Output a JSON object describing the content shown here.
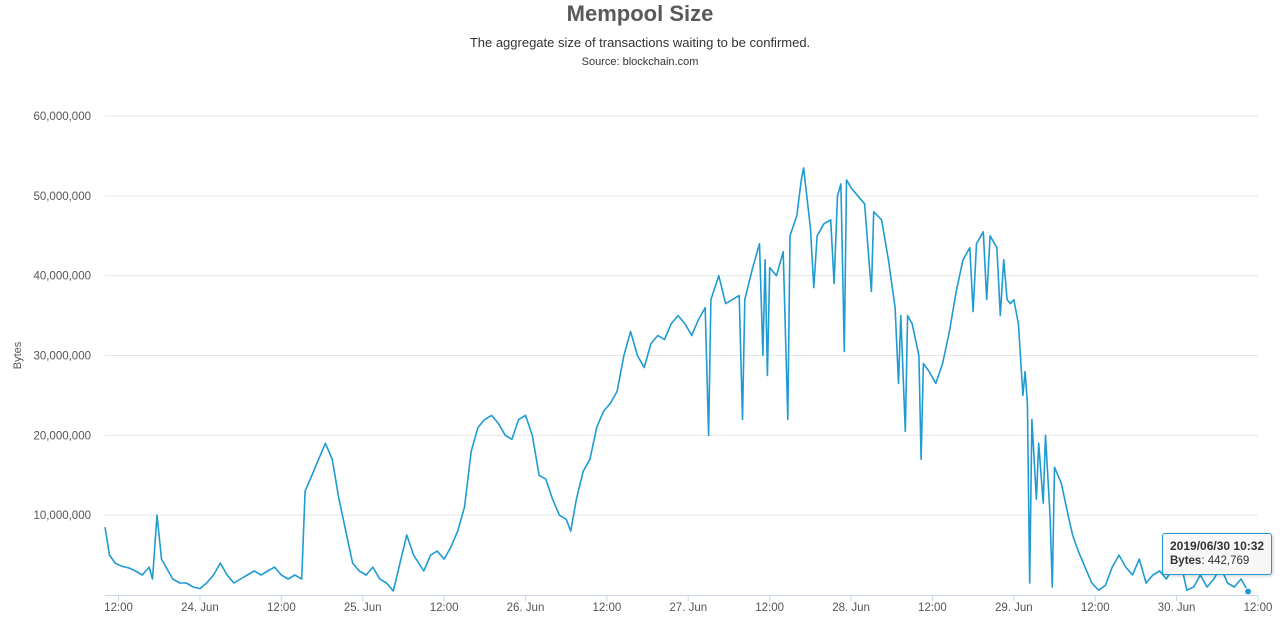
{
  "chart_data": {
    "type": "line",
    "title": "Mempool Size",
    "subtitle": "The aggregate size of transactions waiting to be confirmed.",
    "source": "Source: blockchain.com",
    "ylabel": "Bytes",
    "ylim": [
      0,
      60000000
    ],
    "yticks": [
      {
        "value": 10000000,
        "label": "10,000,000"
      },
      {
        "value": 20000000,
        "label": "20,000,000"
      },
      {
        "value": 30000000,
        "label": "30,000,000"
      },
      {
        "value": 40000000,
        "label": "40,000,000"
      },
      {
        "value": 50000000,
        "label": "50,000,000"
      },
      {
        "value": 60000000,
        "label": "60,000,000"
      }
    ],
    "xlim": [
      "2019-06-23 10:00",
      "2019-06-30 12:00"
    ],
    "xticks": [
      {
        "time": "2019-06-23 12:00",
        "label": "12:00"
      },
      {
        "time": "2019-06-24 00:00",
        "label": "24. Jun"
      },
      {
        "time": "2019-06-24 12:00",
        "label": "12:00"
      },
      {
        "time": "2019-06-25 00:00",
        "label": "25. Jun"
      },
      {
        "time": "2019-06-25 12:00",
        "label": "12:00"
      },
      {
        "time": "2019-06-26 00:00",
        "label": "26. Jun"
      },
      {
        "time": "2019-06-26 12:00",
        "label": "12:00"
      },
      {
        "time": "2019-06-27 00:00",
        "label": "27. Jun"
      },
      {
        "time": "2019-06-27 12:00",
        "label": "12:00"
      },
      {
        "time": "2019-06-28 00:00",
        "label": "28. Jun"
      },
      {
        "time": "2019-06-28 12:00",
        "label": "12:00"
      },
      {
        "time": "2019-06-29 00:00",
        "label": "29. Jun"
      },
      {
        "time": "2019-06-29 12:00",
        "label": "12:00"
      },
      {
        "time": "2019-06-30 00:00",
        "label": "30. Jun"
      },
      {
        "time": "2019-06-30 12:00",
        "label": "12:00"
      }
    ],
    "grid": true,
    "legend": "none",
    "series": [
      {
        "color": "#1f9bd1",
        "points": [
          [
            "2019-06-23 10:00",
            8500000
          ],
          [
            "2019-06-23 10:40",
            5000000
          ],
          [
            "2019-06-23 11:30",
            4000000
          ],
          [
            "2019-06-23 12:30",
            3600000
          ],
          [
            "2019-06-23 13:30",
            3400000
          ],
          [
            "2019-06-23 14:30",
            3000000
          ],
          [
            "2019-06-23 15:30",
            2500000
          ],
          [
            "2019-06-23 16:30",
            3500000
          ],
          [
            "2019-06-23 17:00",
            2000000
          ],
          [
            "2019-06-23 17:40",
            10000000
          ],
          [
            "2019-06-23 18:20",
            4500000
          ],
          [
            "2019-06-23 19:00",
            3500000
          ],
          [
            "2019-06-23 20:00",
            2000000
          ],
          [
            "2019-06-23 21:00",
            1500000
          ],
          [
            "2019-06-23 22:00",
            1500000
          ],
          [
            "2019-06-23 23:00",
            1000000
          ],
          [
            "2019-06-24 00:00",
            800000
          ],
          [
            "2019-06-24 01:00",
            1500000
          ],
          [
            "2019-06-24 02:00",
            2500000
          ],
          [
            "2019-06-24 03:00",
            4000000
          ],
          [
            "2019-06-24 04:00",
            2500000
          ],
          [
            "2019-06-24 05:00",
            1500000
          ],
          [
            "2019-06-24 06:00",
            2000000
          ],
          [
            "2019-06-24 07:00",
            2500000
          ],
          [
            "2019-06-24 08:00",
            3000000
          ],
          [
            "2019-06-24 09:00",
            2500000
          ],
          [
            "2019-06-24 10:00",
            3000000
          ],
          [
            "2019-06-24 11:00",
            3500000
          ],
          [
            "2019-06-24 12:00",
            2500000
          ],
          [
            "2019-06-24 13:00",
            2000000
          ],
          [
            "2019-06-24 14:00",
            2500000
          ],
          [
            "2019-06-24 15:00",
            2000000
          ],
          [
            "2019-06-24 15:30",
            13000000
          ],
          [
            "2019-06-24 16:30",
            15000000
          ],
          [
            "2019-06-24 17:30",
            17000000
          ],
          [
            "2019-06-24 18:30",
            19000000
          ],
          [
            "2019-06-24 19:30",
            17000000
          ],
          [
            "2019-06-24 20:30",
            12000000
          ],
          [
            "2019-06-24 21:30",
            8000000
          ],
          [
            "2019-06-24 22:30",
            4000000
          ],
          [
            "2019-06-24 23:30",
            3000000
          ],
          [
            "2019-06-25 00:30",
            2500000
          ],
          [
            "2019-06-25 01:30",
            3500000
          ],
          [
            "2019-06-25 02:30",
            2000000
          ],
          [
            "2019-06-25 03:30",
            1500000
          ],
          [
            "2019-06-25 04:30",
            500000
          ],
          [
            "2019-06-25 05:30",
            4000000
          ],
          [
            "2019-06-25 06:30",
            7500000
          ],
          [
            "2019-06-25 07:30",
            5000000
          ],
          [
            "2019-06-25 09:00",
            3000000
          ],
          [
            "2019-06-25 10:00",
            5000000
          ],
          [
            "2019-06-25 11:00",
            5500000
          ],
          [
            "2019-06-25 12:00",
            4500000
          ],
          [
            "2019-06-25 13:00",
            6000000
          ],
          [
            "2019-06-25 14:00",
            8000000
          ],
          [
            "2019-06-25 15:00",
            11000000
          ],
          [
            "2019-06-25 16:00",
            18000000
          ],
          [
            "2019-06-25 17:00",
            21000000
          ],
          [
            "2019-06-25 18:00",
            22000000
          ],
          [
            "2019-06-25 19:00",
            22500000
          ],
          [
            "2019-06-25 20:00",
            21500000
          ],
          [
            "2019-06-25 21:00",
            20000000
          ],
          [
            "2019-06-25 22:00",
            19500000
          ],
          [
            "2019-06-25 23:00",
            22000000
          ],
          [
            "2019-06-26 00:00",
            22500000
          ],
          [
            "2019-06-26 01:00",
            20000000
          ],
          [
            "2019-06-26 02:00",
            15000000
          ],
          [
            "2019-06-26 03:00",
            14500000
          ],
          [
            "2019-06-26 04:00",
            12000000
          ],
          [
            "2019-06-26 05:00",
            10000000
          ],
          [
            "2019-06-26 06:00",
            9500000
          ],
          [
            "2019-06-26 06:40",
            8000000
          ],
          [
            "2019-06-26 07:30",
            12000000
          ],
          [
            "2019-06-26 08:30",
            15500000
          ],
          [
            "2019-06-26 09:30",
            17000000
          ],
          [
            "2019-06-26 10:30",
            21000000
          ],
          [
            "2019-06-26 11:30",
            23000000
          ],
          [
            "2019-06-26 12:30",
            24000000
          ],
          [
            "2019-06-26 13:30",
            25500000
          ],
          [
            "2019-06-26 14:30",
            30000000
          ],
          [
            "2019-06-26 15:30",
            33000000
          ],
          [
            "2019-06-26 16:30",
            30000000
          ],
          [
            "2019-06-26 17:30",
            28500000
          ],
          [
            "2019-06-26 18:30",
            31500000
          ],
          [
            "2019-06-26 19:30",
            32500000
          ],
          [
            "2019-06-26 20:30",
            32000000
          ],
          [
            "2019-06-26 21:30",
            34000000
          ],
          [
            "2019-06-26 22:30",
            35000000
          ],
          [
            "2019-06-26 23:30",
            34000000
          ],
          [
            "2019-06-27 00:30",
            32500000
          ],
          [
            "2019-06-27 01:30",
            34500000
          ],
          [
            "2019-06-27 02:30",
            36000000
          ],
          [
            "2019-06-27 03:00",
            20000000
          ],
          [
            "2019-06-27 03:20",
            37000000
          ],
          [
            "2019-06-27 04:30",
            40000000
          ],
          [
            "2019-06-27 05:30",
            36500000
          ],
          [
            "2019-06-27 06:30",
            37000000
          ],
          [
            "2019-06-27 07:30",
            37500000
          ],
          [
            "2019-06-27 08:00",
            22000000
          ],
          [
            "2019-06-27 08:20",
            37000000
          ],
          [
            "2019-06-27 09:30",
            41000000
          ],
          [
            "2019-06-27 10:30",
            44000000
          ],
          [
            "2019-06-27 11:00",
            30000000
          ],
          [
            "2019-06-27 11:20",
            42000000
          ],
          [
            "2019-06-27 11:40",
            27500000
          ],
          [
            "2019-06-27 12:00",
            41000000
          ],
          [
            "2019-06-27 13:00",
            40000000
          ],
          [
            "2019-06-27 14:00",
            43000000
          ],
          [
            "2019-06-27 14:40",
            22000000
          ],
          [
            "2019-06-27 15:00",
            45000000
          ],
          [
            "2019-06-27 16:00",
            47500000
          ],
          [
            "2019-06-27 16:40",
            52000000
          ],
          [
            "2019-06-27 17:00",
            53500000
          ],
          [
            "2019-06-27 18:00",
            46000000
          ],
          [
            "2019-06-27 18:30",
            38500000
          ],
          [
            "2019-06-27 19:00",
            45000000
          ],
          [
            "2019-06-27 20:00",
            46500000
          ],
          [
            "2019-06-27 21:00",
            47000000
          ],
          [
            "2019-06-27 21:30",
            39000000
          ],
          [
            "2019-06-27 22:00",
            50000000
          ],
          [
            "2019-06-27 22:30",
            51500000
          ],
          [
            "2019-06-27 23:00",
            30500000
          ],
          [
            "2019-06-27 23:20",
            52000000
          ],
          [
            "2019-06-28 00:00",
            51000000
          ],
          [
            "2019-06-28 01:00",
            50000000
          ],
          [
            "2019-06-28 02:00",
            49000000
          ],
          [
            "2019-06-28 03:00",
            38000000
          ],
          [
            "2019-06-28 03:20",
            48000000
          ],
          [
            "2019-06-28 04:30",
            47000000
          ],
          [
            "2019-06-28 05:30",
            42000000
          ],
          [
            "2019-06-28 06:30",
            36000000
          ],
          [
            "2019-06-28 07:00",
            26500000
          ],
          [
            "2019-06-28 07:20",
            35000000
          ],
          [
            "2019-06-28 08:00",
            20500000
          ],
          [
            "2019-06-28 08:20",
            35000000
          ],
          [
            "2019-06-28 09:00",
            34000000
          ],
          [
            "2019-06-28 10:00",
            30000000
          ],
          [
            "2019-06-28 10:20",
            17000000
          ],
          [
            "2019-06-28 10:40",
            29000000
          ],
          [
            "2019-06-28 11:30",
            28000000
          ],
          [
            "2019-06-28 12:30",
            26500000
          ],
          [
            "2019-06-28 13:30",
            29000000
          ],
          [
            "2019-06-28 14:30",
            33000000
          ],
          [
            "2019-06-28 15:30",
            38000000
          ],
          [
            "2019-06-28 16:30",
            42000000
          ],
          [
            "2019-06-28 17:30",
            43500000
          ],
          [
            "2019-06-28 18:00",
            35500000
          ],
          [
            "2019-06-28 18:30",
            44000000
          ],
          [
            "2019-06-28 19:30",
            45500000
          ],
          [
            "2019-06-28 20:00",
            37000000
          ],
          [
            "2019-06-28 20:30",
            45000000
          ],
          [
            "2019-06-28 21:30",
            43500000
          ],
          [
            "2019-06-28 22:00",
            35000000
          ],
          [
            "2019-06-28 22:30",
            42000000
          ],
          [
            "2019-06-28 23:00",
            37000000
          ],
          [
            "2019-06-28 23:30",
            36500000
          ],
          [
            "2019-06-29 00:00",
            37000000
          ],
          [
            "2019-06-29 00:40",
            34000000
          ],
          [
            "2019-06-29 01:20",
            25000000
          ],
          [
            "2019-06-29 01:40",
            28000000
          ],
          [
            "2019-06-29 02:00",
            24000000
          ],
          [
            "2019-06-29 02:20",
            1500000
          ],
          [
            "2019-06-29 02:40",
            22000000
          ],
          [
            "2019-06-29 03:20",
            12000000
          ],
          [
            "2019-06-29 03:40",
            19000000
          ],
          [
            "2019-06-29 04:20",
            11500000
          ],
          [
            "2019-06-29 04:40",
            20000000
          ],
          [
            "2019-06-29 05:20",
            10000000
          ],
          [
            "2019-06-29 05:40",
            1000000
          ],
          [
            "2019-06-29 06:00",
            16000000
          ],
          [
            "2019-06-29 07:00",
            14000000
          ],
          [
            "2019-06-29 08:00",
            10000000
          ],
          [
            "2019-06-29 08:40",
            7500000
          ],
          [
            "2019-06-29 09:30",
            5500000
          ],
          [
            "2019-06-29 10:30",
            3500000
          ],
          [
            "2019-06-29 11:30",
            1500000
          ],
          [
            "2019-06-29 12:30",
            600000
          ],
          [
            "2019-06-29 13:30",
            1200000
          ],
          [
            "2019-06-29 14:30",
            3500000
          ],
          [
            "2019-06-29 15:30",
            5000000
          ],
          [
            "2019-06-29 16:30",
            3500000
          ],
          [
            "2019-06-29 17:30",
            2500000
          ],
          [
            "2019-06-29 18:30",
            4500000
          ],
          [
            "2019-06-29 19:30",
            1500000
          ],
          [
            "2019-06-29 20:30",
            2500000
          ],
          [
            "2019-06-29 21:30",
            3000000
          ],
          [
            "2019-06-29 22:30",
            2000000
          ],
          [
            "2019-06-29 23:30",
            3500000
          ],
          [
            "2019-06-30 00:30",
            4500000
          ],
          [
            "2019-06-30 01:30",
            600000
          ],
          [
            "2019-06-30 02:30",
            1000000
          ],
          [
            "2019-06-30 03:30",
            2500000
          ],
          [
            "2019-06-30 04:30",
            1000000
          ],
          [
            "2019-06-30 05:30",
            2000000
          ],
          [
            "2019-06-30 06:30",
            3500000
          ],
          [
            "2019-06-30 07:30",
            1500000
          ],
          [
            "2019-06-30 08:30",
            1000000
          ],
          [
            "2019-06-30 09:30",
            2000000
          ],
          [
            "2019-06-30 10:32",
            442769
          ]
        ]
      }
    ],
    "tooltip": {
      "time": "2019-06-30 10:32",
      "date_label": "2019/06/30 10:32",
      "value_label": "Bytes",
      "value": "442,769"
    }
  }
}
